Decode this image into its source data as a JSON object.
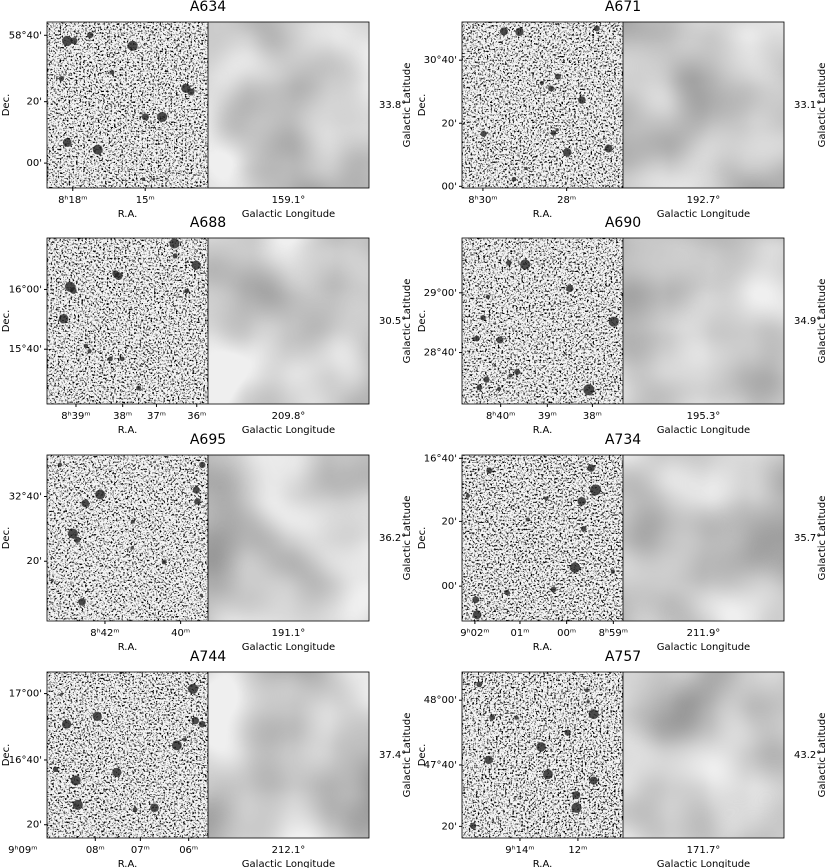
{
  "panels": [
    {
      "title": "A634",
      "dec_label": "Dec.",
      "ra_label": "R.A.",
      "glat_label": "Galactic Latitude",
      "glon_label": "Galactic Longitude",
      "glat": "33.8°",
      "glon": "159.1°",
      "yticks": [
        "58°40'",
        "20'",
        "00'"
      ],
      "xticks": [
        "8ʰ18ᵐ",
        "15ᵐ"
      ]
    },
    {
      "title": "A671",
      "dec_label": "Dec.",
      "ra_label": "R.A.",
      "glat_label": "Galactic Latitude",
      "glon_label": "Galactic Longitude",
      "glat": "33.1°",
      "glon": "192.7°",
      "yticks": [
        "30°40'",
        "20'",
        "00'"
      ],
      "xticks": [
        "8ʰ30ᵐ",
        "28ᵐ"
      ]
    },
    {
      "title": "A688",
      "dec_label": "Dec.",
      "ra_label": "R.A.",
      "glat_label": "Galactic Latitude",
      "glon_label": "Galactic Longitude",
      "glat": "30.5°",
      "glon": "209.8°",
      "yticks": [
        "16°00'",
        "15°40'"
      ],
      "xticks": [
        "8ʰ39ᵐ",
        "38ᵐ",
        "37ᵐ",
        "36ᵐ"
      ]
    },
    {
      "title": "A690",
      "dec_label": "Dec.",
      "ra_label": "R.A.",
      "glat_label": "Galactic Latitude",
      "glon_label": "Galactic Longitude",
      "glat": "34.9°",
      "glon": "195.3°",
      "yticks": [
        "29°00'",
        "28°40'"
      ],
      "xticks": [
        "8ʰ40ᵐ",
        "39ᵐ",
        "38ᵐ"
      ]
    },
    {
      "title": "A695",
      "dec_label": "Dec.",
      "ra_label": "R.A.",
      "glat_label": "Galactic Latitude",
      "glon_label": "Galactic Longitude",
      "glat": "36.2°",
      "glon": "191.1°",
      "yticks": [
        "32°40'",
        "20'"
      ],
      "xticks": [
        "8ʰ42ᵐ",
        "40ᵐ"
      ]
    },
    {
      "title": "A734",
      "dec_label": "Dec.",
      "ra_label": "R.A.",
      "glat_label": "Galactic Latitude",
      "glon_label": "Galactic Longitude",
      "glat": "35.7°",
      "glon": "211.9°",
      "yticks": [
        "16°40'",
        "20'",
        "00'"
      ],
      "xticks": [
        "9ʰ02ᵐ",
        "01ᵐ",
        "00ᵐ",
        "8ʰ59ᵐ"
      ]
    },
    {
      "title": "A744",
      "dec_label": "Dec.",
      "ra_label": "R.A.",
      "glat_label": "Galactic Latitude",
      "glon_label": "Galactic Longitude",
      "glat": "37.4°",
      "glon": "212.1°",
      "yticks": [
        "17°00'",
        "16°40'",
        "20'"
      ],
      "xticks": [
        "9ʰ09ᵐ",
        "08ᵐ",
        "07ᵐ",
        "06ᵐ"
      ]
    },
    {
      "title": "A757",
      "dec_label": "Dec.",
      "ra_label": "R.A.",
      "glat_label": "Galactic Latitude",
      "glon_label": "Galactic Longitude",
      "glat": "43.2°",
      "glon": "171.7°",
      "yticks": [
        "48°00'",
        "47°40'",
        "20'"
      ],
      "xticks": [
        "9ʰ14ᵐ",
        "12ᵐ"
      ]
    }
  ]
}
